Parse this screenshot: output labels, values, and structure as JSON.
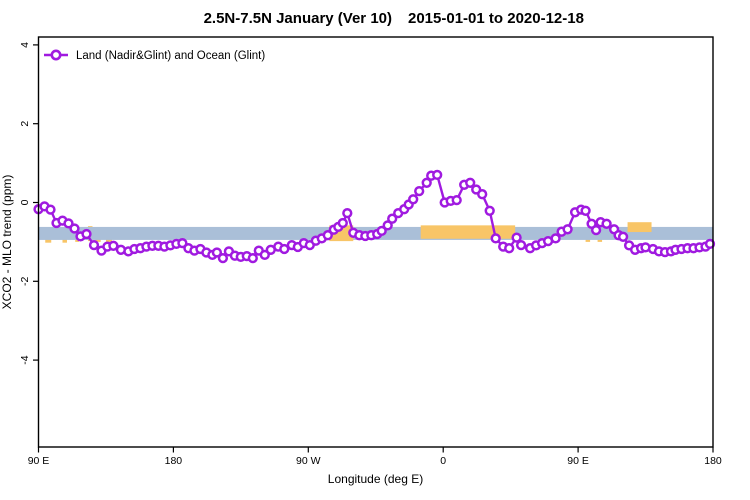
{
  "chart_data": {
    "type": "line",
    "title_left": "2.5N-7.5N January (Ver 10)",
    "title_right": "2015-01-01 to 2020-12-18",
    "xlabel": "Longitude (deg E)",
    "ylabel": "XCO2 - MLO trend (ppm)",
    "grid": false,
    "legend": {
      "label": "Land (Nadir&Glint) and Ocean (Glint)",
      "position": "top-left"
    },
    "colors": {
      "series_purple": "#A01AE0",
      "band_blue": "#AABFD8",
      "band_yellow": "#F8C567",
      "axis_black": "#000000"
    },
    "x_axis": {
      "note_units": "degrees along axis starting at 90E going east (wraps through 180, 90W, 0, 90E to 180)",
      "range": [
        0,
        450
      ],
      "ticks": [
        {
          "pos": 0,
          "label": "90 E"
        },
        {
          "pos": 90,
          "label": "180"
        },
        {
          "pos": 180,
          "label": "90 W"
        },
        {
          "pos": 270,
          "label": "0"
        },
        {
          "pos": 360,
          "label": "90 E"
        },
        {
          "pos": 450,
          "label": "180"
        }
      ]
    },
    "y_axis": {
      "ylim": [
        -6,
        4
      ],
      "ticks": [
        {
          "value": 4,
          "label": "4"
        },
        {
          "value": 2,
          "label": "2"
        },
        {
          "value": 0,
          "label": "0"
        },
        {
          "value": -2,
          "label": "-2"
        },
        {
          "value": -4,
          "label": "-4"
        }
      ]
    },
    "bands": {
      "blue_band": {
        "x_from": 0,
        "x_to": 450,
        "v_from": -0.95,
        "v_to": -0.62
      },
      "yellow_under_segments": [
        {
          "x_from": 4.5,
          "x_to": 8.5,
          "v_from": -1.02,
          "v_to": -0.8
        },
        {
          "x_from": 16,
          "x_to": 19,
          "v_from": -1.02,
          "v_to": -0.8
        },
        {
          "x_from": 24.5,
          "x_to": 27,
          "v_from": -1.0,
          "v_to": -0.8
        },
        {
          "x_from": 33,
          "x_to": 36,
          "v_from": -0.98,
          "v_to": -0.6
        },
        {
          "x_from": 38,
          "x_to": 41.5,
          "v_from": -1.0,
          "v_to": -0.8
        },
        {
          "x_from": 45,
          "x_to": 49,
          "v_from": -1.02,
          "v_to": -0.8
        },
        {
          "x_from": 365,
          "x_to": 368,
          "v_from": -1.0,
          "v_to": -0.75
        },
        {
          "x_from": 373,
          "x_to": 376,
          "v_from": -1.0,
          "v_to": -0.75
        }
      ],
      "yellow_over_segments": [
        {
          "x_from": 194,
          "x_to": 210,
          "v_from": -0.98,
          "v_to": -0.58
        },
        {
          "x_from": 255,
          "x_to": 318,
          "v_from": -0.92,
          "v_to": -0.58
        },
        {
          "x_from": 393,
          "x_to": 409,
          "v_from": -0.75,
          "v_to": -0.5
        }
      ]
    },
    "series": [
      {
        "name": "Land (Nadir&Glint) and Ocean (Glint)",
        "marker": "open-circle",
        "points": [
          [
            0,
            -0.17
          ],
          [
            4,
            -0.1
          ],
          [
            8,
            -0.18
          ],
          [
            12,
            -0.52
          ],
          [
            16,
            -0.46
          ],
          [
            20,
            -0.53
          ],
          [
            24,
            -0.66
          ],
          [
            28,
            -0.86
          ],
          [
            32,
            -0.8
          ],
          [
            37,
            -1.08
          ],
          [
            42,
            -1.22
          ],
          [
            46,
            -1.12
          ],
          [
            50,
            -1.1
          ],
          [
            55,
            -1.2
          ],
          [
            60,
            -1.24
          ],
          [
            64,
            -1.18
          ],
          [
            68,
            -1.16
          ],
          [
            72,
            -1.12
          ],
          [
            76,
            -1.1
          ],
          [
            80,
            -1.1
          ],
          [
            84,
            -1.12
          ],
          [
            88,
            -1.09
          ],
          [
            92,
            -1.05
          ],
          [
            96,
            -1.03
          ],
          [
            100,
            -1.16
          ],
          [
            104,
            -1.22
          ],
          [
            108,
            -1.18
          ],
          [
            112,
            -1.27
          ],
          [
            116,
            -1.33
          ],
          [
            119,
            -1.27
          ],
          [
            123,
            -1.41
          ],
          [
            127,
            -1.24
          ],
          [
            131,
            -1.35
          ],
          [
            135,
            -1.38
          ],
          [
            139,
            -1.36
          ],
          [
            143,
            -1.41
          ],
          [
            147,
            -1.22
          ],
          [
            151,
            -1.33
          ],
          [
            155,
            -1.2
          ],
          [
            160,
            -1.12
          ],
          [
            164,
            -1.18
          ],
          [
            169,
            -1.08
          ],
          [
            173,
            -1.13
          ],
          [
            177,
            -1.03
          ],
          [
            181,
            -1.08
          ],
          [
            185,
            -0.97
          ],
          [
            189,
            -0.91
          ],
          [
            193,
            -0.83
          ],
          [
            197,
            -0.69
          ],
          [
            200,
            -0.62
          ],
          [
            203,
            -0.52
          ],
          [
            206,
            -0.27
          ],
          [
            210,
            -0.77
          ],
          [
            214,
            -0.83
          ],
          [
            218,
            -0.85
          ],
          [
            222,
            -0.83
          ],
          [
            226,
            -0.8
          ],
          [
            229,
            -0.72
          ],
          [
            233,
            -0.58
          ],
          [
            236,
            -0.41
          ],
          [
            240,
            -0.27
          ],
          [
            244,
            -0.17
          ],
          [
            247,
            -0.05
          ],
          [
            250,
            0.08
          ],
          [
            254,
            0.29
          ],
          [
            259,
            0.5
          ],
          [
            262,
            0.68
          ],
          [
            266,
            0.7
          ],
          [
            271,
            0.0
          ],
          [
            275,
            0.04
          ],
          [
            279,
            0.06
          ],
          [
            284,
            0.45
          ],
          [
            288,
            0.5
          ],
          [
            292,
            0.33
          ],
          [
            296,
            0.21
          ],
          [
            301,
            -0.21
          ],
          [
            305,
            -0.91
          ],
          [
            310,
            -1.12
          ],
          [
            314,
            -1.16
          ],
          [
            319,
            -0.89
          ],
          [
            322,
            -1.08
          ],
          [
            328,
            -1.16
          ],
          [
            332,
            -1.09
          ],
          [
            336,
            -1.03
          ],
          [
            340,
            -0.98
          ],
          [
            345,
            -0.91
          ],
          [
            349,
            -0.74
          ],
          [
            353,
            -0.68
          ],
          [
            358,
            -0.25
          ],
          [
            362,
            -0.18
          ],
          [
            365,
            -0.21
          ],
          [
            369,
            -0.54
          ],
          [
            372,
            -0.7
          ],
          [
            375,
            -0.5
          ],
          [
            379,
            -0.54
          ],
          [
            384,
            -0.68
          ],
          [
            387,
            -0.83
          ],
          [
            390,
            -0.87
          ],
          [
            394,
            -1.09
          ],
          [
            398,
            -1.2
          ],
          [
            402,
            -1.16
          ],
          [
            405,
            -1.14
          ],
          [
            410,
            -1.18
          ],
          [
            414,
            -1.24
          ],
          [
            418,
            -1.26
          ],
          [
            422,
            -1.24
          ],
          [
            425,
            -1.2
          ],
          [
            429,
            -1.18
          ],
          [
            433,
            -1.16
          ],
          [
            437,
            -1.16
          ],
          [
            441,
            -1.14
          ],
          [
            445,
            -1.12
          ],
          [
            448,
            -1.05
          ]
        ]
      }
    ]
  }
}
